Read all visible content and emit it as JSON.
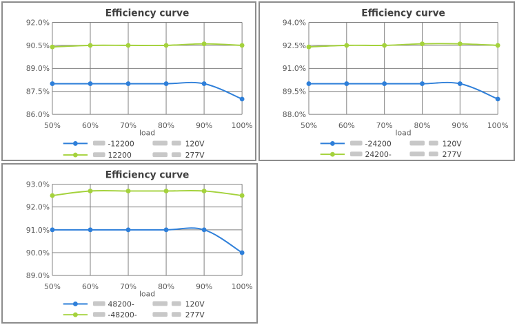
{
  "colors": {
    "series_blue": "#2e7fd9",
    "series_green": "#a4d23c",
    "grid": "#7f7f7f"
  },
  "chart_data": [
    {
      "type": "line",
      "title": "Efficiency curve",
      "xlabel": "load",
      "categories": [
        "50%",
        "60%",
        "70%",
        "80%",
        "90%",
        "100%"
      ],
      "ylim": [
        86.0,
        92.0
      ],
      "yticks": [
        "92.0%",
        "90.5%",
        "89.0%",
        "87.5%",
        "86.0%"
      ],
      "grid": true,
      "legend": "bottom",
      "series": [
        {
          "name": "-12200 120V",
          "color": "#2e7fd9",
          "values": [
            88.0,
            88.0,
            88.0,
            88.0,
            88.0,
            87.0
          ]
        },
        {
          "name": "12200 277V",
          "color": "#a4d23c",
          "values": [
            90.4,
            90.5,
            90.5,
            90.5,
            90.6,
            90.5
          ]
        }
      ]
    },
    {
      "type": "line",
      "title": "Efficiency curve",
      "xlabel": "load",
      "categories": [
        "50%",
        "60%",
        "70%",
        "80%",
        "90%",
        "100%"
      ],
      "ylim": [
        88.0,
        94.0
      ],
      "yticks": [
        "94.0%",
        "92.5%",
        "91.0%",
        "89.5%",
        "88.0%"
      ],
      "grid": true,
      "legend": "bottom",
      "series": [
        {
          "name": "-24200 120V",
          "color": "#2e7fd9",
          "values": [
            90.0,
            90.0,
            90.0,
            90.0,
            90.0,
            89.0
          ]
        },
        {
          "name": "24200- 277V",
          "color": "#a4d23c",
          "values": [
            92.4,
            92.5,
            92.5,
            92.6,
            92.6,
            92.5
          ]
        }
      ]
    },
    {
      "type": "line",
      "title": "Efficiency curve",
      "xlabel": "load",
      "categories": [
        "50%",
        "60%",
        "70%",
        "80%",
        "90%",
        "100%"
      ],
      "ylim": [
        89.0,
        93.0
      ],
      "yticks": [
        "93.0%",
        "92.0%",
        "91.0%",
        "90.0%",
        "89.0%"
      ],
      "grid": true,
      "legend": "bottom",
      "series": [
        {
          "name": "48200- 120V",
          "color": "#2e7fd9",
          "values": [
            91.0,
            91.0,
            91.0,
            91.0,
            91.0,
            90.0
          ]
        },
        {
          "name": "-48200- 277V",
          "color": "#a4d23c",
          "values": [
            92.5,
            92.7,
            92.7,
            92.7,
            92.7,
            92.5
          ]
        }
      ]
    }
  ]
}
